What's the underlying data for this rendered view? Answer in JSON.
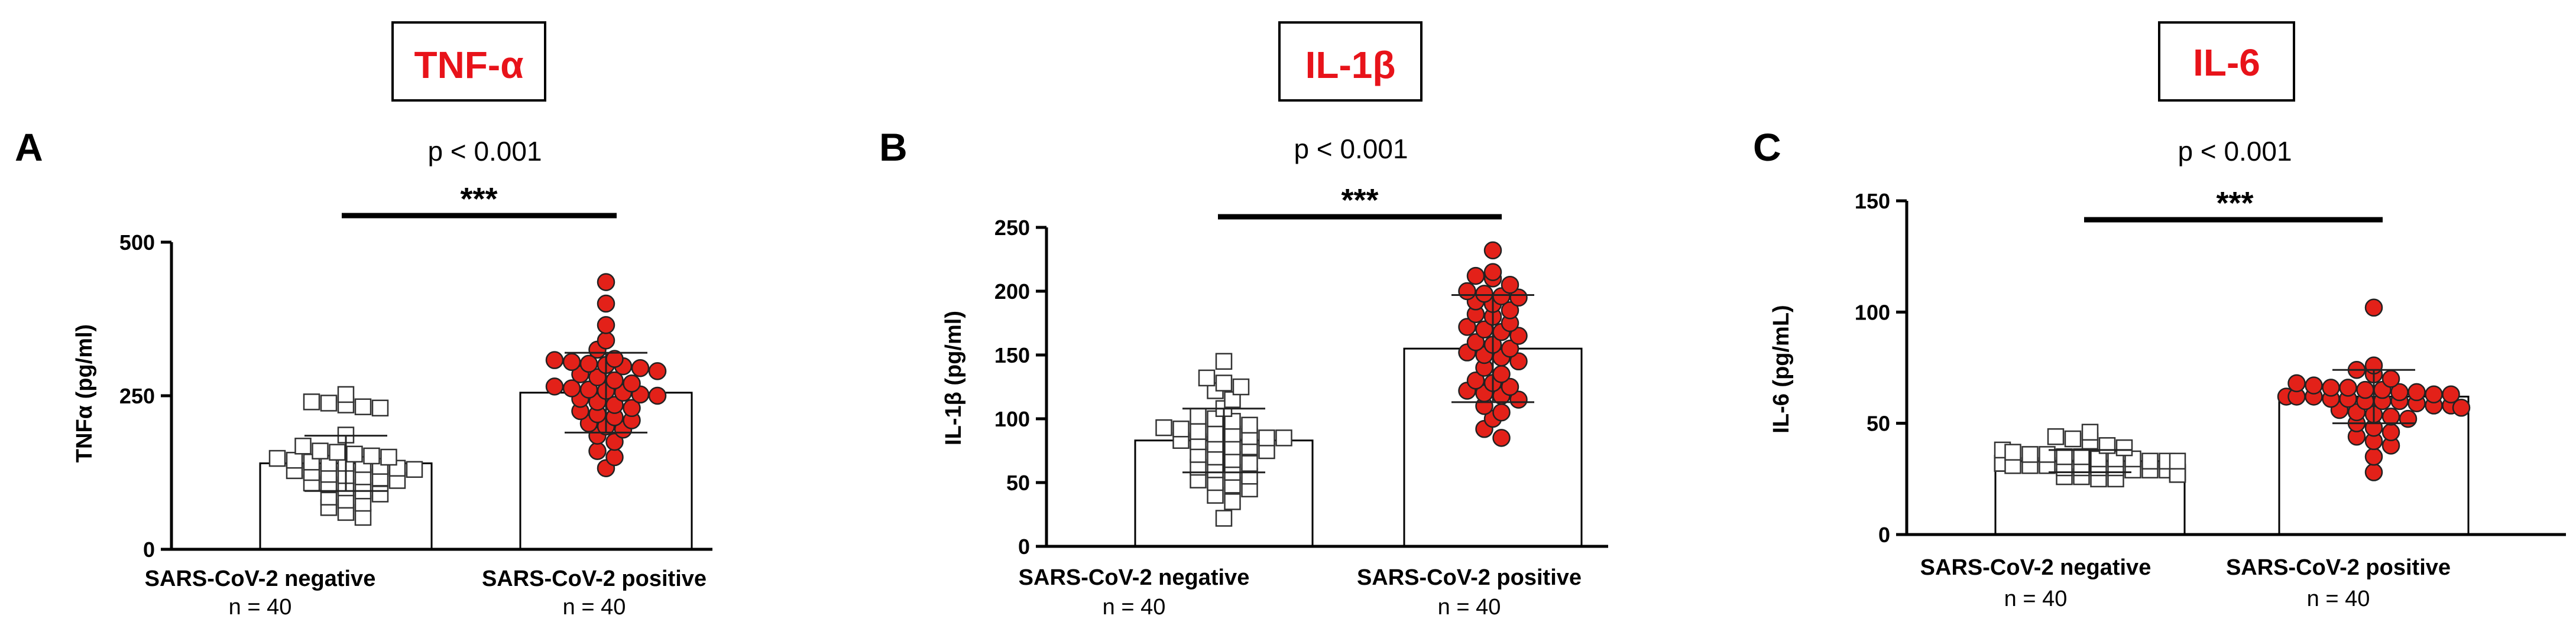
{
  "chart_data": [
    {
      "type": "bar",
      "panel": "A",
      "title": "TNF-α",
      "ylabel": "TNFα  (pg/ml)",
      "ylim": [
        0,
        500
      ],
      "yticks": [
        0,
        250,
        500
      ],
      "categories": [
        "SARS-CoV-2 negative",
        "SARS-CoV-2 positive"
      ],
      "n_labels": [
        "n = 40",
        "n = 40"
      ],
      "p_value": "p < 0.001",
      "significance": "***",
      "series": [
        {
          "name": "SARS-CoV-2 negative",
          "marker": "square",
          "mean": 140,
          "sd": 45,
          "points": [
            252,
            240,
            238,
            235,
            232,
            230,
            186,
            168,
            160,
            158,
            155,
            152,
            150,
            148,
            145,
            142,
            140,
            140,
            138,
            135,
            132,
            130,
            128,
            125,
            122,
            120,
            118,
            116,
            112,
            108,
            105,
            100,
            95,
            90,
            85,
            80,
            75,
            68,
            60,
            52
          ]
        },
        {
          "name": "SARS-CoV-2 positive",
          "marker": "circle",
          "mean": 255,
          "sd": 65,
          "points": [
            435,
            400,
            365,
            340,
            325,
            310,
            308,
            305,
            302,
            300,
            298,
            295,
            290,
            285,
            280,
            275,
            270,
            265,
            262,
            260,
            258,
            255,
            252,
            250,
            245,
            240,
            235,
            230,
            225,
            220,
            215,
            210,
            205,
            200,
            195,
            185,
            175,
            160,
            150,
            132
          ]
        }
      ]
    },
    {
      "type": "bar",
      "panel": "B",
      "title": "IL-1β",
      "ylabel": "IL-1β (pg/ml)",
      "ylim": [
        0,
        250
      ],
      "yticks": [
        0,
        50,
        100,
        150,
        200,
        250
      ],
      "categories": [
        "SARS-CoV-2 negative",
        "SARS-CoV-2 positive"
      ],
      "n_labels": [
        "n = 40",
        "n = 40"
      ],
      "p_value": "p < 0.001",
      "significance": "***",
      "series": [
        {
          "name": "SARS-CoV-2 negative",
          "marker": "square",
          "mean": 83,
          "sd": 25,
          "points": [
            145,
            132,
            128,
            125,
            122,
            115,
            108,
            102,
            100,
            98,
            95,
            93,
            92,
            90,
            88,
            88,
            86,
            85,
            85,
            83,
            82,
            80,
            78,
            78,
            75,
            72,
            70,
            68,
            65,
            62,
            60,
            58,
            55,
            52,
            50,
            48,
            45,
            40,
            35,
            22
          ]
        },
        {
          "name": "SARS-CoV-2 positive",
          "marker": "circle",
          "mean": 155,
          "sd": 42,
          "points": [
            232,
            215,
            212,
            210,
            205,
            200,
            198,
            196,
            195,
            192,
            190,
            185,
            182,
            180,
            175,
            172,
            170,
            168,
            165,
            160,
            158,
            155,
            152,
            150,
            148,
            145,
            140,
            135,
            130,
            128,
            125,
            122,
            120,
            118,
            115,
            110,
            105,
            100,
            92,
            85
          ]
        }
      ]
    },
    {
      "type": "bar",
      "panel": "C",
      "title": "IL-6",
      "ylabel": "IL-6  (pg/mL)",
      "ylim": [
        0,
        150
      ],
      "yticks": [
        0,
        50,
        100,
        150
      ],
      "categories": [
        "SARS-CoV-2 negative",
        "SARS-CoV-2 positive"
      ],
      "n_labels": [
        "n = 40",
        "n = 40"
      ],
      "p_value": "p < 0.001",
      "significance": "***",
      "series": [
        {
          "name": "SARS-CoV-2 negative",
          "marker": "square",
          "mean": 33,
          "sd": 5,
          "points": [
            46,
            44,
            43,
            42,
            40,
            39,
            38,
            37,
            36,
            36,
            35,
            35,
            34,
            34,
            34,
            33,
            33,
            33,
            32,
            32,
            32,
            32,
            31,
            31,
            31,
            30,
            30,
            30,
            30,
            29,
            29,
            29,
            28,
            28,
            27,
            27,
            26,
            26,
            25,
            25
          ]
        },
        {
          "name": "SARS-CoV-2 positive",
          "marker": "circle",
          "mean": 62,
          "sd": 12,
          "points": [
            102,
            76,
            74,
            72,
            70,
            68,
            67,
            66,
            66,
            65,
            65,
            64,
            64,
            63,
            63,
            62,
            62,
            62,
            61,
            61,
            60,
            60,
            60,
            59,
            58,
            58,
            57,
            56,
            55,
            54,
            53,
            52,
            50,
            48,
            46,
            44,
            42,
            40,
            35,
            28
          ]
        }
      ]
    }
  ],
  "colors": {
    "title": "#e8131a",
    "positive_fill": "#e32119",
    "negative_fill": "#ffffff",
    "stroke": "#000000"
  }
}
